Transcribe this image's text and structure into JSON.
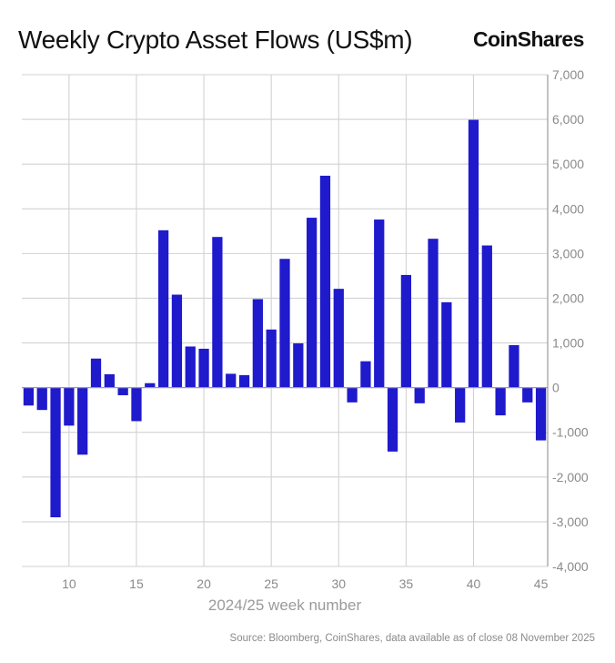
{
  "title": "Weekly Crypto Asset Flows (US$m)",
  "brand": "CoinShares",
  "source": "Source: Bloomberg, CoinShares, data available as of close 08 November 2025",
  "chart_data": {
    "type": "bar",
    "title": "Weekly Crypto Asset Flows (US$m)",
    "xlabel": "2024/25 week number",
    "ylabel": "US$m",
    "ylim": [
      -4000,
      7000
    ],
    "xlim": [
      6.5,
      45.5
    ],
    "y_ticks": [
      -4000,
      -3000,
      -2000,
      -1000,
      0,
      1000,
      2000,
      3000,
      4000,
      5000,
      6000,
      7000
    ],
    "y_tick_labels": [
      "-4,000",
      "-3,000",
      "-2,000",
      "-1,000",
      "0",
      "1,000",
      "2,000",
      "3,000",
      "4,000",
      "5,000",
      "6,000",
      "7,000"
    ],
    "x_ticks": [
      10,
      15,
      20,
      25,
      30,
      35,
      40,
      45
    ],
    "x_tick_labels": [
      "10",
      "15",
      "20",
      "25",
      "30",
      "35",
      "40",
      "45"
    ],
    "y_axis_position": "right",
    "grid": true,
    "bar_color": "#1f1acc",
    "categories": [
      7,
      8,
      9,
      10,
      11,
      12,
      13,
      14,
      15,
      16,
      17,
      18,
      19,
      20,
      21,
      22,
      23,
      24,
      25,
      26,
      27,
      28,
      29,
      30,
      31,
      32,
      33,
      34,
      35,
      36,
      37,
      38,
      39,
      40,
      41,
      42,
      43,
      44,
      45
    ],
    "values": [
      -400,
      -500,
      -2900,
      -850,
      -1500,
      650,
      300,
      -170,
      -750,
      100,
      3520,
      2080,
      920,
      870,
      3370,
      310,
      280,
      1980,
      1300,
      2880,
      990,
      3800,
      4740,
      2210,
      -330,
      590,
      3760,
      -1430,
      2520,
      -350,
      3330,
      1910,
      -780,
      5990,
      3180,
      -620,
      950,
      -330,
      -1180
    ]
  }
}
